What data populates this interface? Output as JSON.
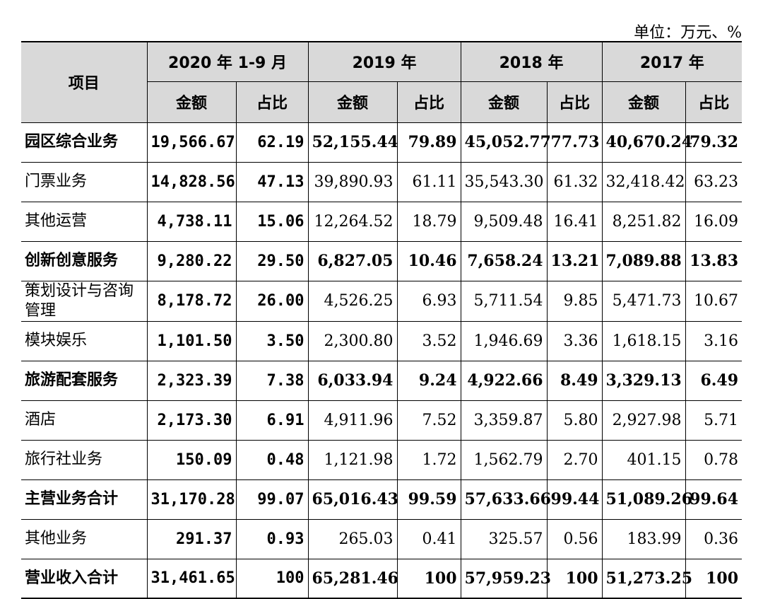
{
  "unit_label": "单位：万元、%",
  "header": {
    "item_label": "项目",
    "periods": [
      "2020 年 1-9 月",
      "2019 年",
      "2018 年",
      "2017 年"
    ],
    "amount_label": "金额",
    "share_label": "占比"
  },
  "rows": [
    {
      "label": "园区综合业务",
      "bold": true,
      "values": [
        "19,566.67",
        "62.19",
        "52,155.44",
        "79.89",
        "45,052.77",
        "77.73",
        "40,670.24",
        "79.32"
      ]
    },
    {
      "label": "门票业务",
      "bold": false,
      "values": [
        "14,828.56",
        "47.13",
        "39,890.93",
        "61.11",
        "35,543.30",
        "61.32",
        "32,418.42",
        "63.23"
      ]
    },
    {
      "label": "其他运营",
      "bold": false,
      "values": [
        "4,738.11",
        "15.06",
        "12,264.52",
        "18.79",
        "9,509.48",
        "16.41",
        "8,251.82",
        "16.09"
      ]
    },
    {
      "label": "创新创意服务",
      "bold": true,
      "values": [
        "9,280.22",
        "29.50",
        "6,827.05",
        "10.46",
        "7,658.24",
        "13.21",
        "7,089.88",
        "13.83"
      ]
    },
    {
      "label": "策划设计与咨询管理",
      "bold": false,
      "values": [
        "8,178.72",
        "26.00",
        "4,526.25",
        "6.93",
        "5,711.54",
        "9.85",
        "5,471.73",
        "10.67"
      ]
    },
    {
      "label": "模块娱乐",
      "bold": false,
      "values": [
        "1,101.50",
        "3.50",
        "2,300.80",
        "3.52",
        "1,946.69",
        "3.36",
        "1,618.15",
        "3.16"
      ]
    },
    {
      "label": "旅游配套服务",
      "bold": true,
      "values": [
        "2,323.39",
        "7.38",
        "6,033.94",
        "9.24",
        "4,922.66",
        "8.49",
        "3,329.13",
        "6.49"
      ]
    },
    {
      "label": "酒店",
      "bold": false,
      "values": [
        "2,173.30",
        "6.91",
        "4,911.96",
        "7.52",
        "3,359.87",
        "5.80",
        "2,927.98",
        "5.71"
      ]
    },
    {
      "label": "旅行社业务",
      "bold": false,
      "values": [
        "150.09",
        "0.48",
        "1,121.98",
        "1.72",
        "1,562.79",
        "2.70",
        "401.15",
        "0.78"
      ]
    },
    {
      "label": "主营业务合计",
      "bold": true,
      "values": [
        "31,170.28",
        "99.07",
        "65,016.43",
        "99.59",
        "57,633.66",
        "99.44",
        "51,089.26",
        "99.64"
      ]
    },
    {
      "label": "其他业务",
      "bold": false,
      "values": [
        "291.37",
        "0.93",
        "265.03",
        "0.41",
        "325.57",
        "0.56",
        "183.99",
        "0.36"
      ]
    },
    {
      "label": "营业收入合计",
      "bold": true,
      "values": [
        "31,461.65",
        "100",
        "65,281.46",
        "100",
        "57,959.23",
        "100",
        "51,273.25",
        "100"
      ]
    }
  ]
}
